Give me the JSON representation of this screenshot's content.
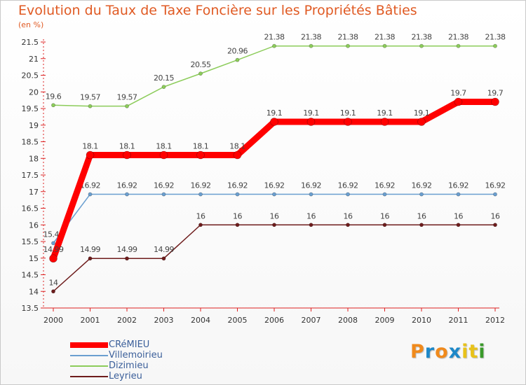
{
  "title": "Evolution du Taux de Taxe Foncière sur les Propriétés Bâties",
  "subtitle": "(en %)",
  "logo": {
    "text": "Proxiti",
    "letters": [
      "P",
      "r",
      "o",
      "x",
      "i",
      "t",
      "i"
    ],
    "colors": [
      "#f08a1c",
      "#1e88c8",
      "#f08a1c",
      "#1e88c8",
      "#e8c21a",
      "#e8c21a",
      "#3a9a2a"
    ]
  },
  "chart_data": {
    "type": "line",
    "x": [
      "2000",
      "2001",
      "2002",
      "2003",
      "2004",
      "2005",
      "2006",
      "2007",
      "2008",
      "2009",
      "2010",
      "2011",
      "2012"
    ],
    "ylim": [
      13.5,
      21.5
    ],
    "yticks": [
      13.5,
      14,
      14.5,
      15,
      15.5,
      16,
      16.5,
      17,
      17.5,
      18,
      18.5,
      19,
      19.5,
      20,
      20.5,
      21,
      21.5
    ],
    "ytick_labels": [
      "13.5",
      "14",
      "14.5",
      "15",
      "15.5",
      "16",
      "16.5",
      "17",
      "17.5",
      "18",
      "18.5",
      "19",
      "19.5",
      "20",
      "20.5",
      "21",
      "21.5"
    ],
    "grid": false,
    "legend": "bottom-left",
    "series": [
      {
        "name": "Dizimieu",
        "color": "#8ccc5a",
        "width": 1.5,
        "marker": 2.6,
        "values": [
          19.6,
          19.57,
          19.57,
          20.15,
          20.55,
          20.96,
          21.38,
          21.38,
          21.38,
          21.38,
          21.38,
          21.38,
          21.38
        ],
        "labels": [
          "19.6",
          "19.57",
          "19.57",
          "20.15",
          "20.55",
          "20.96",
          "21.38",
          "21.38",
          "21.38",
          "21.38",
          "21.38",
          "21.38",
          "21.38"
        ]
      },
      {
        "name": "Villemoirieu",
        "color": "#6a9fd0",
        "width": 1.5,
        "marker": 2.6,
        "values": [
          15.45,
          16.92,
          16.92,
          16.92,
          16.92,
          16.92,
          16.92,
          16.92,
          16.92,
          16.92,
          16.92,
          16.92,
          16.92
        ],
        "labels": [
          "15.45",
          "16.92",
          "16.92",
          "16.92",
          "16.92",
          "16.92",
          "16.92",
          "16.92",
          "16.92",
          "16.92",
          "16.92",
          "16.92",
          "16.92"
        ]
      },
      {
        "name": "Leyrieu",
        "color": "#6e1c1c",
        "width": 1.5,
        "marker": 2.6,
        "values": [
          14,
          14.99,
          14.99,
          14.99,
          16,
          16,
          16,
          16,
          16,
          16,
          16,
          16,
          16
        ],
        "labels": [
          "14",
          "14.99",
          "14.99",
          "14.99",
          "16",
          "16",
          "16",
          "16",
          "16",
          "16",
          "16",
          "16",
          "16"
        ]
      },
      {
        "name": "CRéMIEU",
        "color": "#ff0000",
        "width": 9,
        "marker": 5.5,
        "values": [
          14.99,
          18.1,
          18.1,
          18.1,
          18.1,
          18.1,
          19.1,
          19.1,
          19.1,
          19.1,
          19.1,
          19.7,
          19.7
        ],
        "labels": [
          "14.99",
          "18.1",
          "18.1",
          "18.1",
          "18.1",
          "18.1",
          "19.1",
          "19.1",
          "19.1",
          "19.1",
          "19.1",
          "19.7",
          "19.7"
        ]
      }
    ],
    "legend_entries": [
      {
        "name": "CRéMIEU",
        "color": "#ff0000",
        "width": 8
      },
      {
        "name": "Villemoirieu",
        "color": "#6a9fd0",
        "width": 2
      },
      {
        "name": "Dizimieu",
        "color": "#8ccc5a",
        "width": 2
      },
      {
        "name": "Leyrieu",
        "color": "#6e1c1c",
        "width": 2
      }
    ]
  }
}
